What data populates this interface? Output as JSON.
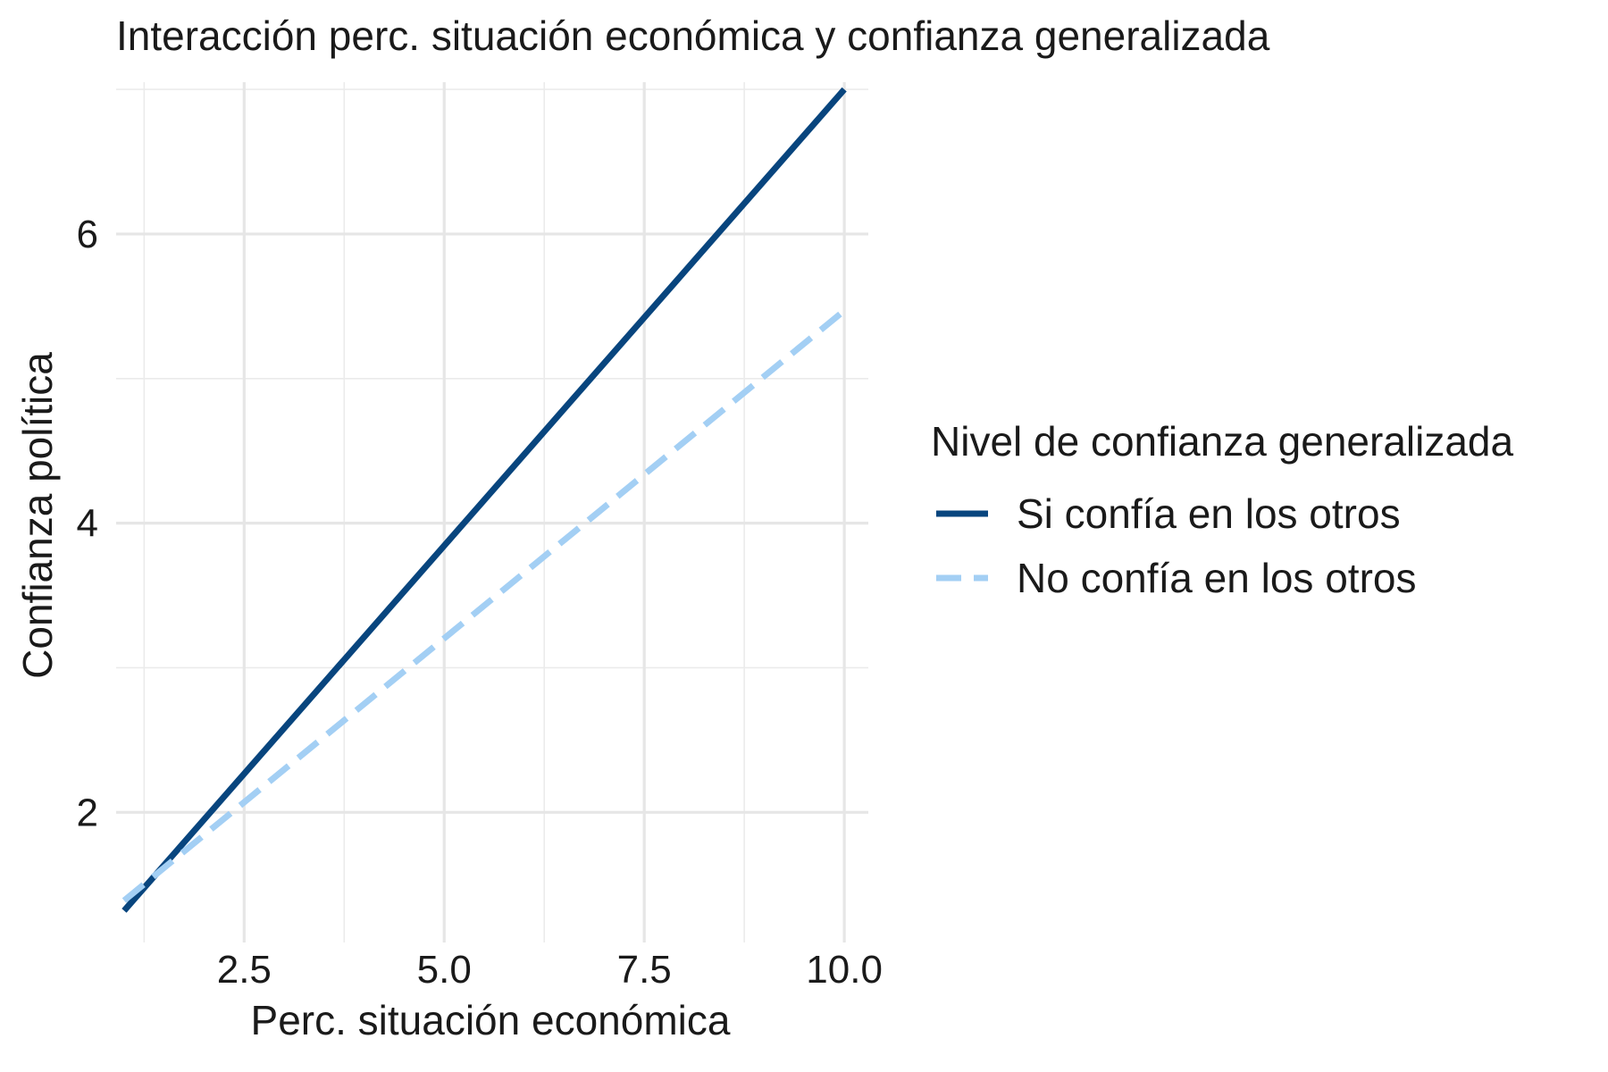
{
  "chart_data": {
    "type": "line",
    "title": "Interacción perc. situación económica y confianza generalizada",
    "xlabel": "Perc. situación económica",
    "ylabel": "Confianza política",
    "xlim": [
      0.9,
      10.3
    ],
    "ylim": [
      1.1,
      7.05
    ],
    "x_ticks": [
      2.5,
      5.0,
      7.5,
      10.0
    ],
    "x_tick_labels": [
      "2.5",
      "5.0",
      "7.5",
      "10.0"
    ],
    "y_ticks": [
      2,
      4,
      6
    ],
    "y_tick_labels": [
      "2",
      "4",
      "6"
    ],
    "grid": true,
    "legend": {
      "title": "Nivel de confianza generalizada",
      "position": "right"
    },
    "series": [
      {
        "name": "Si confía en los otros",
        "color": "#08457e",
        "style": "solid",
        "x": [
          1,
          10
        ],
        "y": [
          1.32,
          7.0
        ]
      },
      {
        "name": "No confía en los otros",
        "color": "#a3cff4",
        "style": "dashed",
        "x": [
          1,
          10
        ],
        "y": [
          1.39,
          5.47
        ]
      }
    ]
  }
}
